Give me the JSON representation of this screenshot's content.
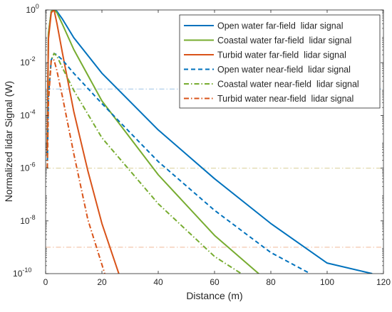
{
  "chart_data": {
    "type": "line",
    "title": "",
    "xlabel": "Distance (m)",
    "ylabel": "Normalized lidar Signal (W)",
    "xlim": [
      0,
      120
    ],
    "ylim_log10": [
      -10,
      0
    ],
    "yscale": "log",
    "grid": false,
    "legend_placement": "top-right",
    "x_ticks": [
      {
        "value": 0,
        "label": "0"
      },
      {
        "value": 20,
        "label": "20"
      },
      {
        "value": 40,
        "label": "40"
      },
      {
        "value": 60,
        "label": "60"
      },
      {
        "value": 80,
        "label": "80"
      },
      {
        "value": 100,
        "label": "100"
      },
      {
        "value": 120,
        "label": "120"
      }
    ],
    "y_ticks": [
      {
        "exp": 0,
        "base": "10",
        "power": "0"
      },
      {
        "exp": -2,
        "base": "10",
        "power": "-2"
      },
      {
        "exp": -4,
        "base": "10",
        "power": "-4"
      },
      {
        "exp": -6,
        "base": "10",
        "power": "-6"
      },
      {
        "exp": -8,
        "base": "10",
        "power": "-8"
      },
      {
        "exp": -10,
        "base": "10",
        "power": "-10"
      }
    ],
    "series": [
      {
        "name": "Open water far-field  lidar signal",
        "color": "#0072BD",
        "dash": "solid",
        "points": [
          [
            0.5,
            -5.5
          ],
          [
            1,
            -0.9
          ],
          [
            2,
            -0.05
          ],
          [
            3,
            0
          ],
          [
            4,
            -0.05
          ],
          [
            6,
            -0.35
          ],
          [
            10,
            -1.05
          ],
          [
            20,
            -2.4
          ],
          [
            40,
            -4.55
          ],
          [
            60,
            -6.4
          ],
          [
            80,
            -8.1
          ],
          [
            100,
            -9.6
          ],
          [
            116,
            -10
          ]
        ]
      },
      {
        "name": "Coastal water far-field  lidar signal",
        "color": "#77AC30",
        "dash": "solid",
        "points": [
          [
            0.5,
            -5.5
          ],
          [
            1,
            -0.9
          ],
          [
            2,
            -0.05
          ],
          [
            3,
            0
          ],
          [
            4,
            -0.1
          ],
          [
            6,
            -0.55
          ],
          [
            10,
            -1.5
          ],
          [
            20,
            -3.45
          ],
          [
            40,
            -6.25
          ],
          [
            60,
            -8.55
          ],
          [
            80,
            -10.4
          ],
          [
            86.5,
            -11
          ]
        ]
      },
      {
        "name": "Turbid water far-field  lidar signal",
        "color": "#D95319",
        "dash": "solid",
        "points": [
          [
            0.5,
            -5.5
          ],
          [
            1,
            -1.1
          ],
          [
            2,
            -0.1
          ],
          [
            3,
            0
          ],
          [
            4,
            -0.5
          ],
          [
            6,
            -1.65
          ],
          [
            10,
            -3.85
          ],
          [
            15,
            -6.1
          ],
          [
            20,
            -8.1
          ],
          [
            26,
            -10
          ]
        ]
      },
      {
        "name": "Open water near-field  lidar signal",
        "color": "#0072BD",
        "dash": "dashed",
        "points": [
          [
            0.6,
            -6
          ],
          [
            1,
            -3.3
          ],
          [
            2,
            -1.9
          ],
          [
            3,
            -1.65
          ],
          [
            4,
            -1.7
          ],
          [
            6,
            -1.9
          ],
          [
            10,
            -2.4
          ],
          [
            20,
            -3.55
          ],
          [
            40,
            -5.75
          ],
          [
            60,
            -7.6
          ],
          [
            80,
            -9.2
          ],
          [
            94,
            -10
          ]
        ]
      },
      {
        "name": "Coastal water near-field  lidar signal",
        "color": "#77AC30",
        "dash": "dash-dot",
        "points": [
          [
            0.6,
            -6
          ],
          [
            1,
            -3.3
          ],
          [
            2,
            -1.9
          ],
          [
            3,
            -1.65
          ],
          [
            4,
            -1.75
          ],
          [
            6,
            -2.2
          ],
          [
            10,
            -3.05
          ],
          [
            20,
            -4.85
          ],
          [
            40,
            -7.35
          ],
          [
            60,
            -9.35
          ],
          [
            69.5,
            -10
          ]
        ]
      },
      {
        "name": "Turbid water near-field  lidar signal",
        "color": "#D95319",
        "dash": "dash-dot",
        "points": [
          [
            0.6,
            -6
          ],
          [
            1,
            -3.5
          ],
          [
            2,
            -1.9
          ],
          [
            3,
            -1.9
          ],
          [
            4,
            -2.3
          ],
          [
            6,
            -3.3
          ],
          [
            10,
            -5.45
          ],
          [
            15,
            -7.95
          ],
          [
            21,
            -10
          ]
        ]
      }
    ],
    "reference_lines": [
      {
        "exp": -3,
        "color": "#9dc3e6",
        "dash": "dash-dot"
      },
      {
        "exp": -6,
        "color": "#d9cf98",
        "dash": "dash-dot"
      },
      {
        "exp": -9,
        "color": "#f0b898",
        "dash": "dash-dot"
      }
    ]
  }
}
